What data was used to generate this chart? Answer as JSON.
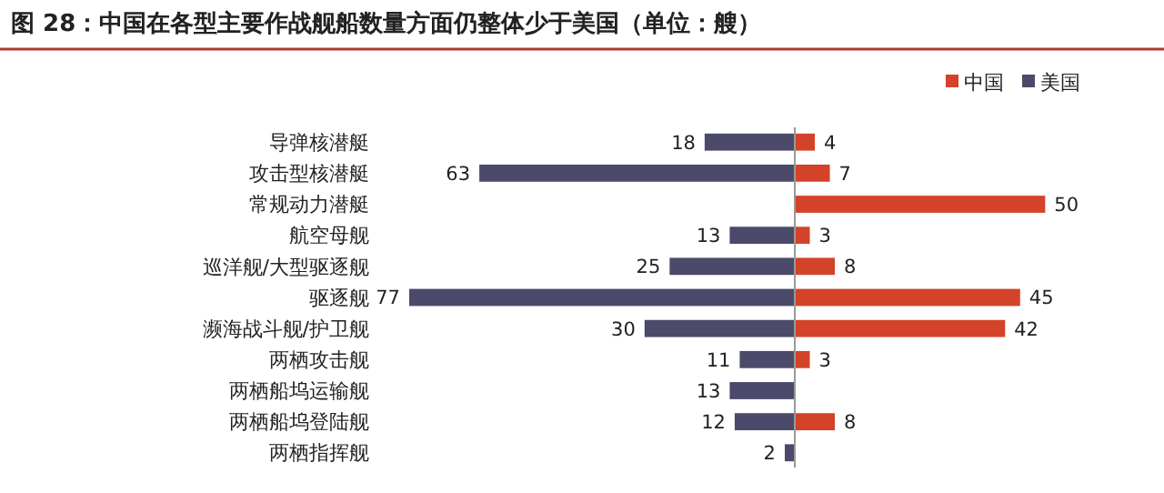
{
  "chart_data": [
    {
      "type": "bar",
      "orientation": "horizontal",
      "title": "图 28：中国在各型主要作战舰船数量方面仍整体少于美国（单位：艘）",
      "categories": [
        "导弹核潜艇",
        "攻击型核潜艇",
        "常规动力潜艇",
        "航空母舰",
        "巡洋舰/大型驱逐舰",
        "驱逐舰",
        "濒海战斗舰/护卫舰",
        "两栖攻击舰",
        "两栖船坞运输舰",
        "两栖船坞登陆舰",
        "两栖指挥舰"
      ],
      "series": [
        {
          "name": "美国",
          "color": "#4b4a6b",
          "values": [
            18,
            63,
            null,
            13,
            25,
            77,
            30,
            11,
            13,
            12,
            2
          ]
        }
      ],
      "data_labels": true,
      "legend": "top right",
      "tick_labels": "y"
    },
    {
      "type": "bar",
      "orientation": "horizontal",
      "categories": [
        "导弹核潜艇",
        "攻击型核潜艇",
        "常规动力潜艇",
        "航空母舰",
        "巡洋舰/大型驱逐舰",
        "驱逐舰",
        "濒海战斗舰/护卫舰",
        "两栖攻击舰",
        "两栖船坞运输舰",
        "两栖船坞登陆舰",
        "两栖指挥舰"
      ],
      "series": [
        {
          "name": "中国",
          "color": "#d2432a",
          "values": [
            4,
            7,
            50,
            3,
            8,
            45,
            42,
            3,
            null,
            8,
            null
          ]
        }
      ],
      "data_labels": true,
      "legend": "top right",
      "tick_labels": false
    }
  ]
}
